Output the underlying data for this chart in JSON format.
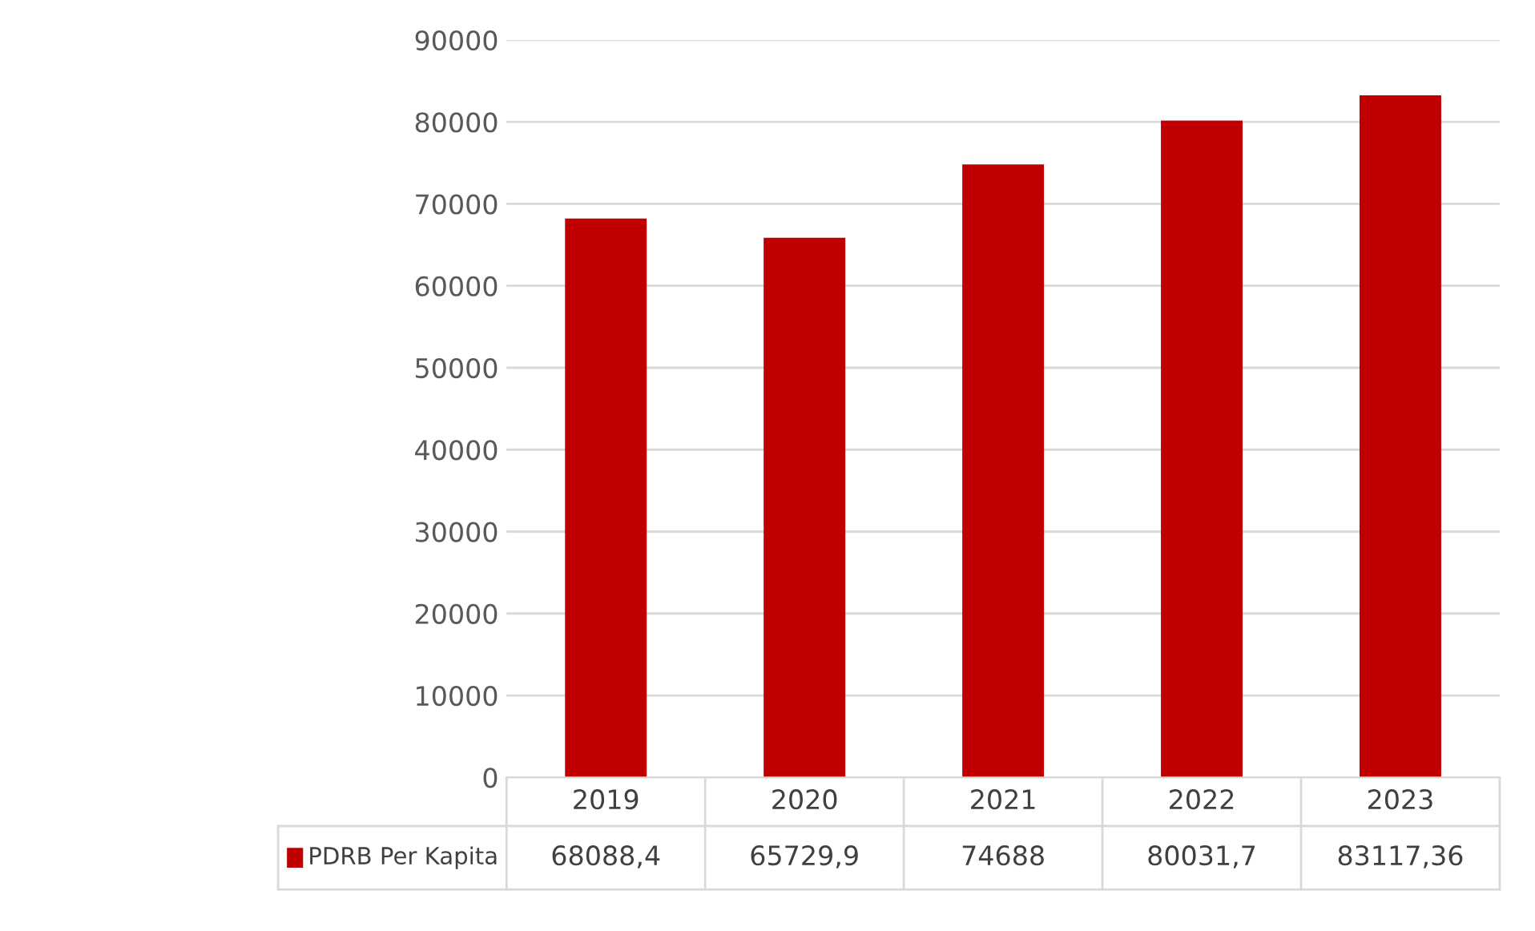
{
  "chart_data": {
    "type": "bar",
    "categories": [
      "2019",
      "2020",
      "2021",
      "2022",
      "2023"
    ],
    "series": [
      {
        "name": "PDRB Per Kapita",
        "color": "#c00000",
        "values": [
          68088.4,
          65729.9,
          74688,
          80031.7,
          83117.36
        ],
        "value_labels": [
          "68088,4",
          "65729,9",
          "74688",
          "80031,7",
          "83117,36"
        ]
      }
    ],
    "ylim": [
      0,
      90000
    ],
    "yticks": [
      0,
      10000,
      20000,
      30000,
      40000,
      50000,
      60000,
      70000,
      80000,
      90000
    ],
    "grid": "y",
    "legend": "bottom left"
  }
}
